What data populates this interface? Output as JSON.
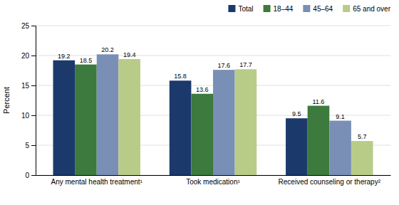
{
  "chart_data": {
    "type": "bar",
    "categories": [
      "Any mental health treatment¹",
      "Took medication¹",
      "Received counseling or therapy²"
    ],
    "series": [
      {
        "name": "Total",
        "color": "#1b3a6b",
        "values": [
          19.2,
          15.8,
          9.5
        ]
      },
      {
        "name": "18–44",
        "color": "#3d7a3d",
        "values": [
          18.5,
          13.6,
          11.6
        ]
      },
      {
        "name": "45–64",
        "color": "#7a8fb5",
        "values": [
          20.2,
          17.6,
          9.1
        ]
      },
      {
        "name": "65 and over",
        "color": "#b8cc88",
        "values": [
          19.4,
          17.7,
          5.7
        ]
      }
    ],
    "ylabel": "Percent",
    "ylim": [
      0,
      25
    ],
    "yticks": [
      0,
      5,
      10,
      15,
      20,
      25
    ],
    "grid": true,
    "legend": "upper right",
    "data_labels": true
  }
}
